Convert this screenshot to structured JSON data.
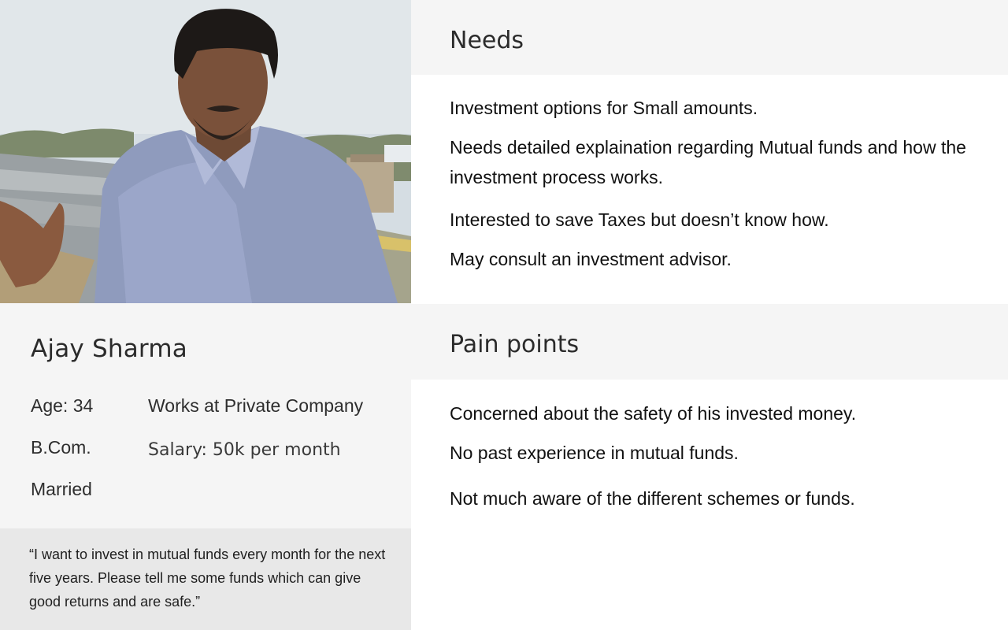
{
  "persona": {
    "photo_icon": "person-portrait-photo",
    "name": "Ajay Sharma",
    "age": "Age: 34",
    "occupation": "Works at Private Company",
    "education": "B.Com.",
    "salary": "Salary: 50k per month",
    "marital_status": "Married",
    "quote": "“I want to invest in mutual funds every month for the next five years. Please tell me some funds which can give good returns and are safe.”"
  },
  "needs": {
    "heading": "Needs",
    "items": [
      "Investment options for Small amounts.",
      "Needs detailed explaination regarding Mutual funds and how the investment process works.",
      "Interested to save Taxes but doesn’t know how.",
      "May consult an investment advisor."
    ]
  },
  "pain_points": {
    "heading": "Pain points",
    "items": [
      "Concerned about the safety of his invested money.",
      "No past experience in mutual funds.",
      "Not much aware of the different schemes or funds."
    ]
  }
}
